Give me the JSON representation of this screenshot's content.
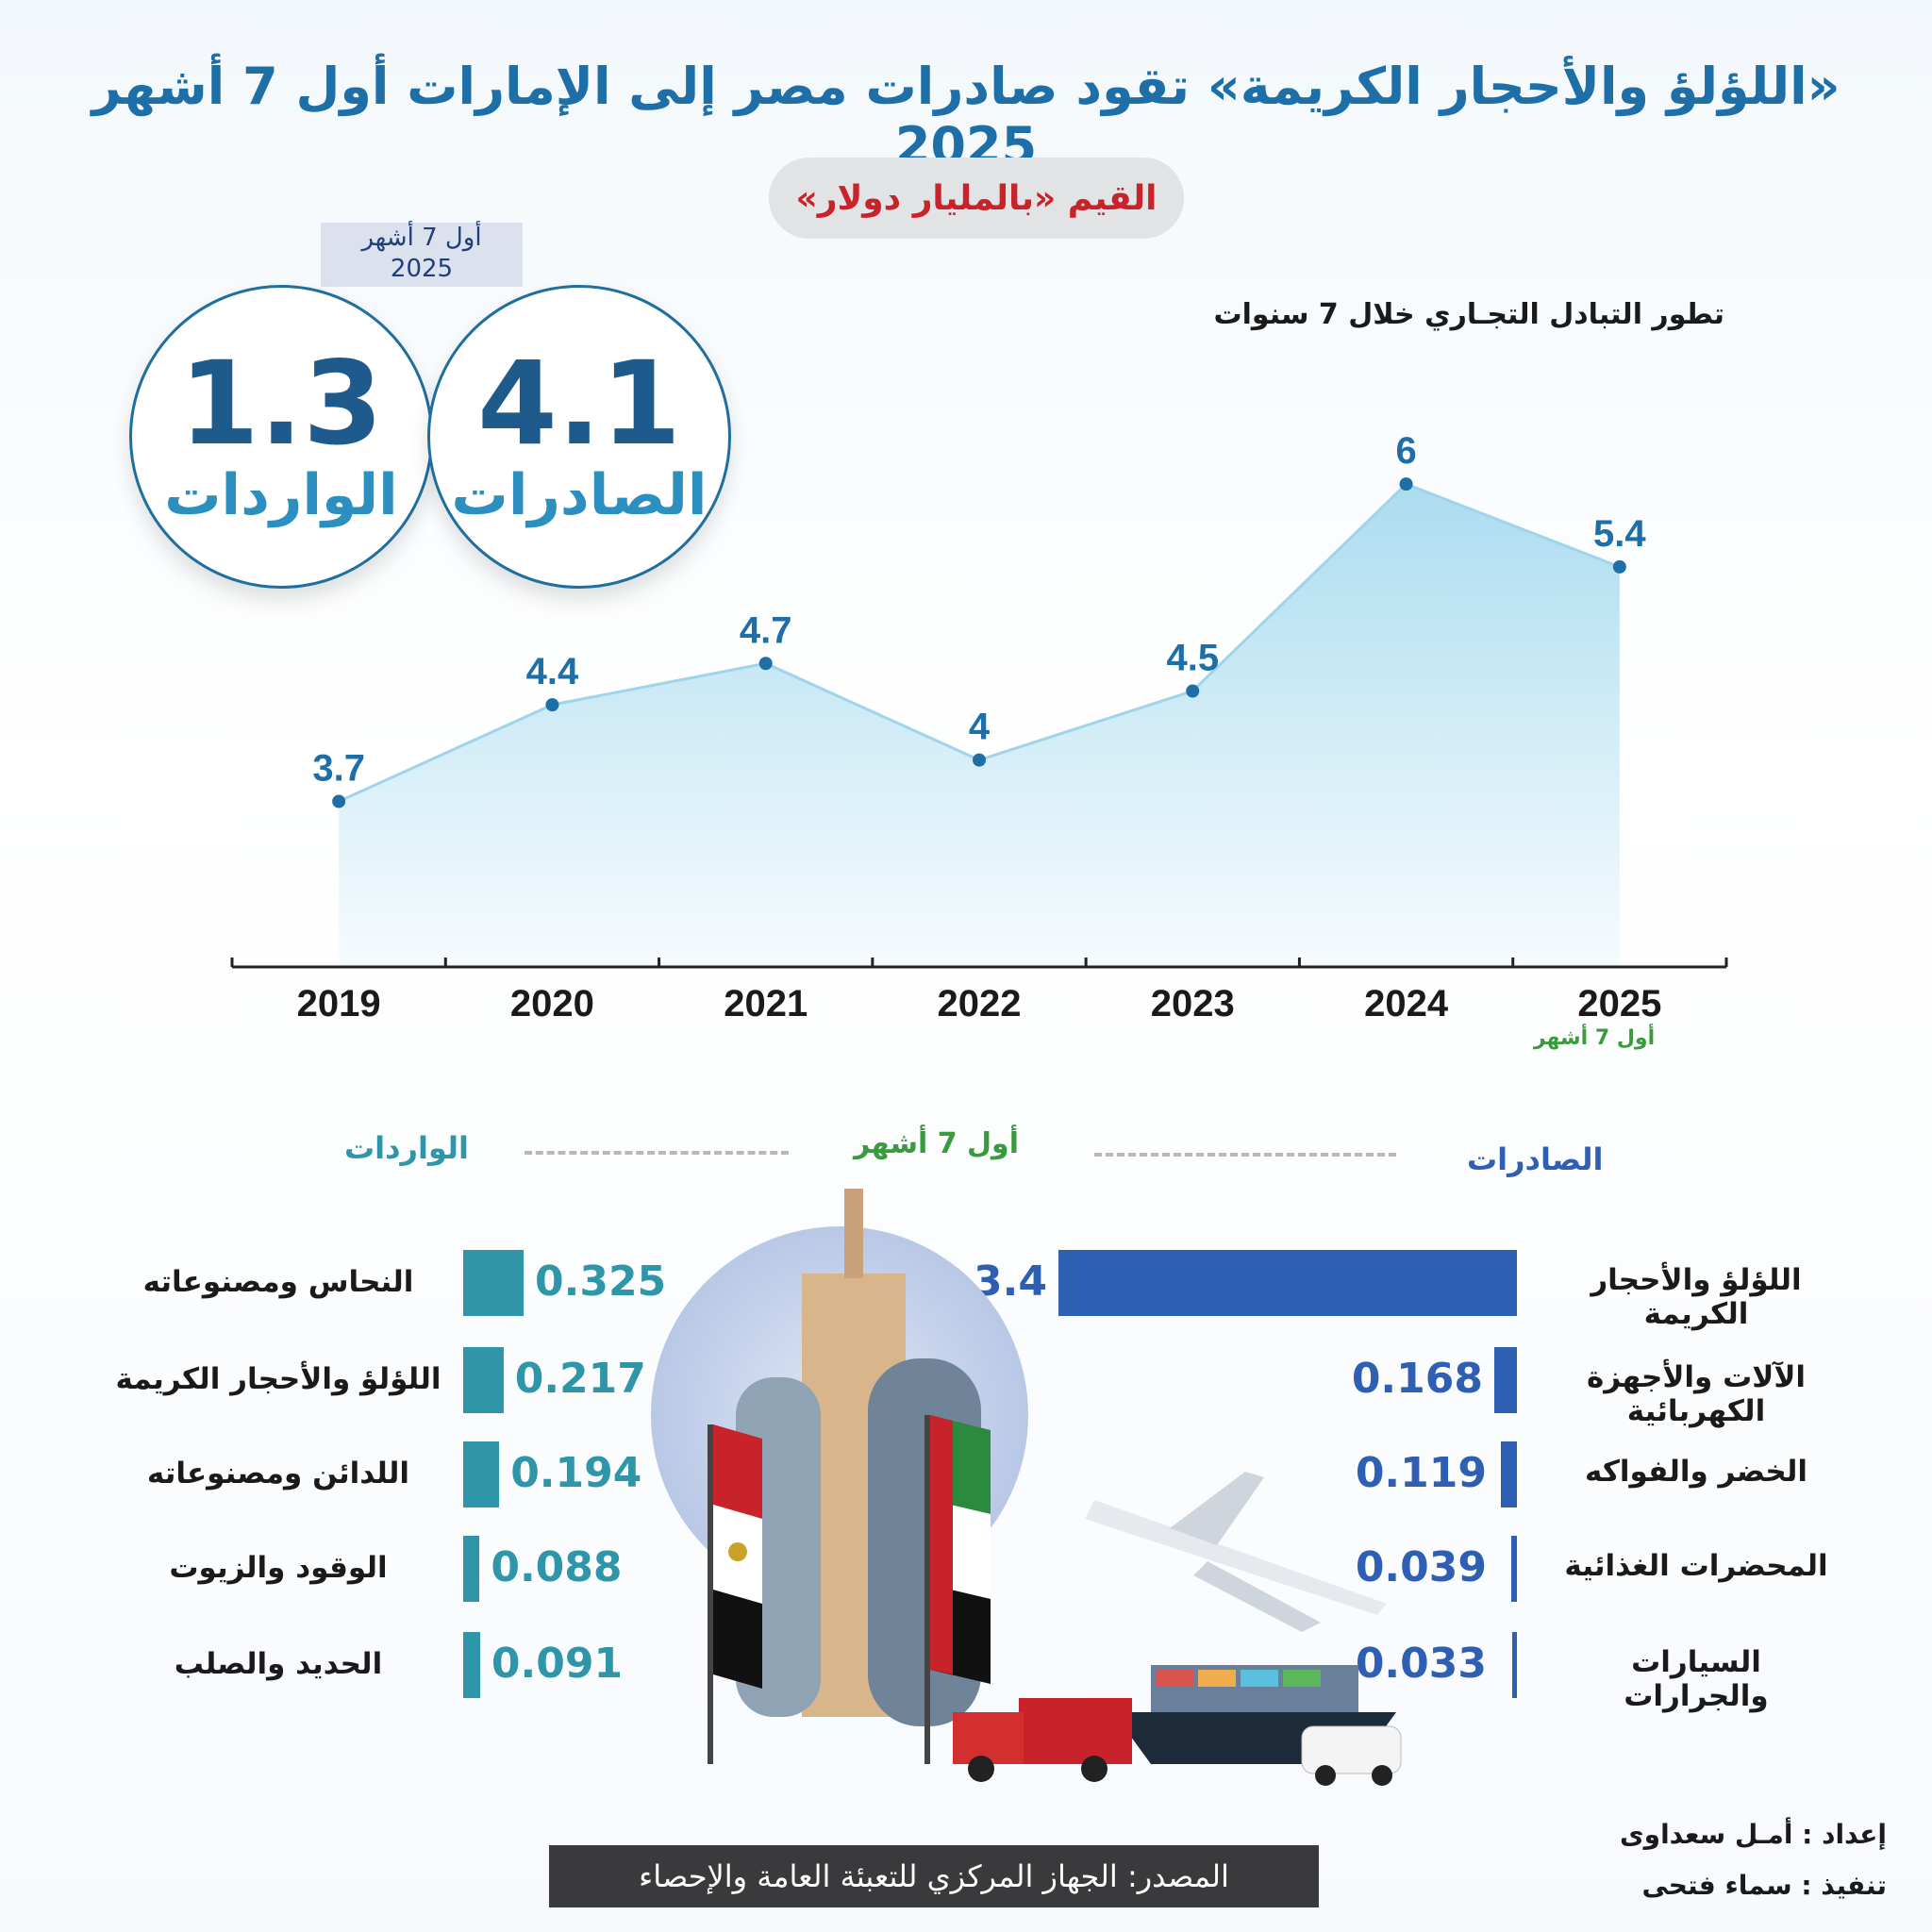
{
  "title": "«اللؤلؤ والأحجار الكريمة» تقود صادرات مصر إلى الإمارات أول 7 أشهر 2025",
  "subtitle": "القيم «بالمليار دولار»",
  "period_box": {
    "line1": "أول 7 أشهر",
    "line2": "2025"
  },
  "summary": {
    "exports": {
      "value": "4.1",
      "label": "الصادرات"
    },
    "imports": {
      "value": "1.3",
      "label": "الواردات"
    }
  },
  "colors": {
    "title": "#1e6fa8",
    "exports_bar": "#2f5fb3",
    "imports_bar": "#2f95a8",
    "area": "#a7dbef",
    "line_point": "#1e6fa8",
    "period_note": "#3a9a3e"
  },
  "chart_heading": "تطور التبادل التجـاري خلال 7 سنوات",
  "range_note": "أول 7 أشهر",
  "section_labels": {
    "exports": "الصادرات",
    "imports": "الواردات",
    "period": "أول 7 أشهر"
  },
  "chart_data": [
    {
      "type": "area",
      "categories": [
        "2019",
        "2020",
        "2021",
        "2022",
        "2023",
        "2024",
        "2025"
      ],
      "values": [
        3.7,
        4.4,
        4.7,
        4,
        4.5,
        6,
        5.4
      ],
      "value_labels": [
        "3.7",
        "4.4",
        "4.7",
        "4",
        "4.5",
        "6",
        "5.4"
      ],
      "title": "تطور التبادل التجـاري خلال 7 سنوات",
      "ylim": [
        2.5,
        6.5
      ],
      "grid": false
    },
    {
      "type": "bar",
      "orientation": "horizontal",
      "title": "الصادرات",
      "categories": [
        "اللؤلؤ والأحجار الكريمة",
        "الآلات والأجهزة الكهربائية",
        "الخضر والفواكه",
        "المحضرات الغذائية",
        "السيارات والجرارات"
      ],
      "values": [
        3.4,
        0.168,
        0.119,
        0.039,
        0.033
      ],
      "value_labels": [
        "3.4",
        "0.168",
        "0.119",
        "0.039",
        "0.033"
      ],
      "xlim": [
        0,
        3.4
      ]
    },
    {
      "type": "bar",
      "orientation": "horizontal",
      "title": "الواردات",
      "categories": [
        "النحاس ومصنوعاته",
        "اللؤلؤ والأحجار الكريمة",
        "اللدائن ومصنوعاته",
        "الوقود والزيوت",
        "الحديد والصلب"
      ],
      "values": [
        0.325,
        0.217,
        0.194,
        0.088,
        0.091
      ],
      "value_labels": [
        "0.325",
        "0.217",
        "0.194",
        "0.088",
        "0.091"
      ],
      "xlim": [
        0,
        0.325
      ]
    }
  ],
  "source": "المصدر: الجهاز المركزي للتعبئة العامة والإحصاء",
  "credits": {
    "prepared": "إعداد : أمـل سعداوى",
    "executed": "تنفيذ : سماء فتحى"
  },
  "icons": [
    "egypt-flag-icon",
    "uae-flag-icon",
    "airplane-icon",
    "truck-icon",
    "cargo-ship-icon",
    "van-icon",
    "cairo-tower-icon"
  ]
}
